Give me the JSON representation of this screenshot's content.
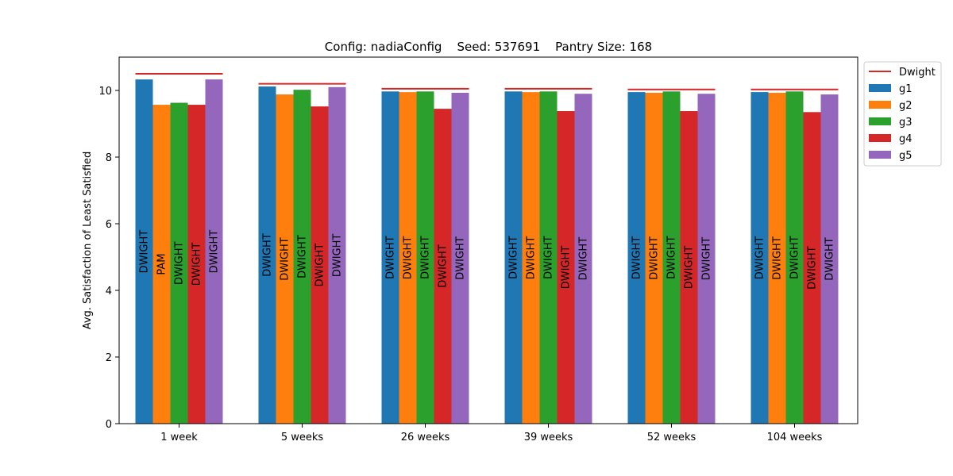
{
  "chart_data": {
    "type": "bar",
    "title": "Config: nadiaConfig    Seed: 537691    Pantry Size: 168",
    "xlabel": "",
    "ylabel": "Avg. Satisfaction of Least Satisfied",
    "ylim": [
      0,
      11
    ],
    "yticks": [
      "0",
      "2",
      "4",
      "6",
      "8",
      "10"
    ],
    "categories": [
      "1 week",
      "5 weeks",
      "26 weeks",
      "39 weeks",
      "52 weeks",
      "104 weeks"
    ],
    "series": [
      {
        "name": "g1",
        "color": "#1f77b4",
        "values": [
          10.33,
          10.12,
          9.97,
          9.97,
          9.95,
          9.95
        ],
        "labels": [
          "DWIGHT",
          "DWIGHT",
          "DWIGHT",
          "DWIGHT",
          "DWIGHT",
          "DWIGHT"
        ]
      },
      {
        "name": "g2",
        "color": "#ff7f0e",
        "values": [
          9.57,
          9.88,
          9.95,
          9.95,
          9.93,
          9.93
        ],
        "labels": [
          "PAM",
          "DWIGHT",
          "DWIGHT",
          "DWIGHT",
          "DWIGHT",
          "DWIGHT"
        ]
      },
      {
        "name": "g3",
        "color": "#2ca02c",
        "values": [
          9.63,
          10.02,
          9.97,
          9.97,
          9.97,
          9.97
        ],
        "labels": [
          "DWIGHT",
          "DWIGHT",
          "DWIGHT",
          "DWIGHT",
          "DWIGHT",
          "DWIGHT"
        ]
      },
      {
        "name": "g4",
        "color": "#d62728",
        "values": [
          9.57,
          9.52,
          9.45,
          9.38,
          9.38,
          9.35
        ],
        "labels": [
          "DWIGHT",
          "DWIGHT",
          "DWIGHT",
          "DWIGHT",
          "DWIGHT",
          "DWIGHT"
        ]
      },
      {
        "name": "g5",
        "color": "#9467bd",
        "values": [
          10.33,
          10.1,
          9.93,
          9.9,
          9.9,
          9.88
        ],
        "labels": [
          "DWIGHT",
          "DWIGHT",
          "DWIGHT",
          "DWIGHT",
          "DWIGHT",
          "DWIGHT"
        ]
      }
    ],
    "reference_line": {
      "name": "Dwight",
      "color": "#d62728",
      "values": [
        10.5,
        10.2,
        10.05,
        10.05,
        10.03,
        10.03
      ]
    },
    "legend": {
      "placement": "outside-top-right",
      "entries": [
        "Dwight",
        "g1",
        "g2",
        "g3",
        "g4",
        "g5"
      ]
    },
    "grid": false
  }
}
